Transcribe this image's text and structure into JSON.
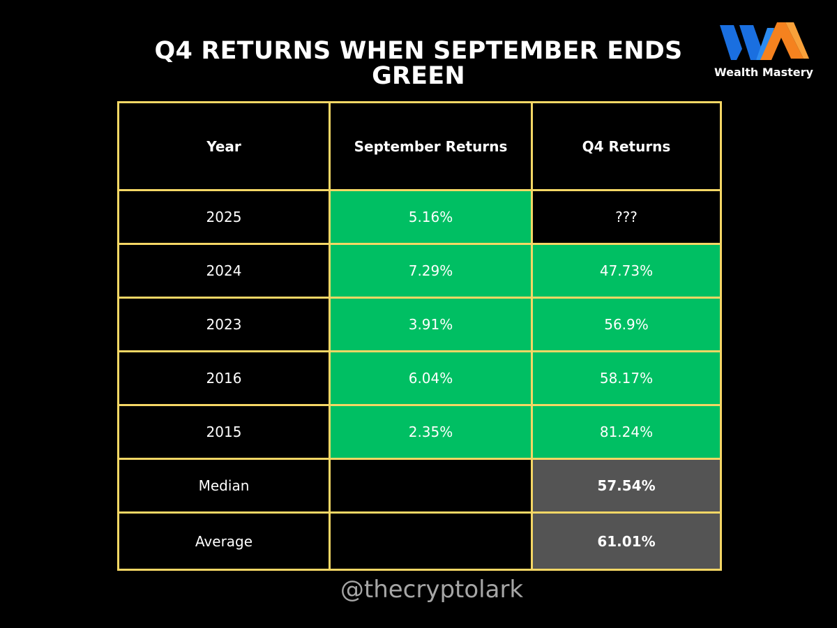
{
  "title_line1": "Q4 RETURNS WHEN SEPTEMBER ENDS",
  "title_line2": "GREEN",
  "logo": {
    "text": "Wealth Mastery",
    "colors": [
      "#1a6fe0",
      "#f5821f"
    ]
  },
  "handle": "@thecryptolark",
  "colors": {
    "border": "#f5d765",
    "positive": "#00bf63",
    "summary": "#545454",
    "background": "#000000",
    "handle": "#a6a6a6"
  },
  "chart_data": {
    "type": "table",
    "columns": [
      "Year",
      "September Returns",
      "Q4 Returns"
    ],
    "rows": [
      {
        "year": "2025",
        "september": "5.16%",
        "q4": "???"
      },
      {
        "year": "2024",
        "september": "7.29%",
        "q4": "47.73%"
      },
      {
        "year": "2023",
        "september": "3.91%",
        "q4": "56.9%"
      },
      {
        "year": "2016",
        "september": "6.04%",
        "q4": "58.17%"
      },
      {
        "year": "2015",
        "september": "2.35%",
        "q4": "81.24%"
      }
    ],
    "summary": [
      {
        "label": "Median",
        "september": "",
        "q4": "57.54%"
      },
      {
        "label": "Average",
        "september": "",
        "q4": "61.01%"
      }
    ]
  }
}
